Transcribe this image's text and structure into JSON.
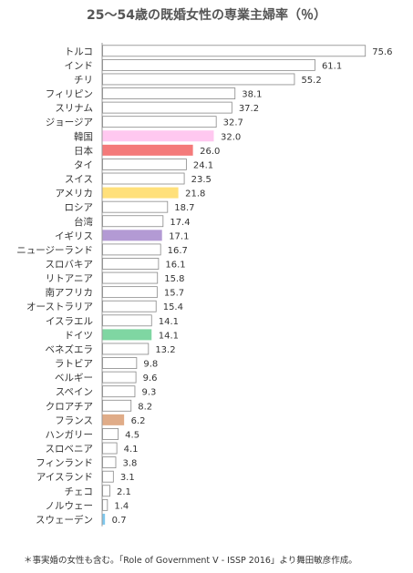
{
  "chart_data": {
    "type": "bar",
    "orientation": "horizontal",
    "title": "25～54歳の既婚女性の専業主婦率（％）",
    "footnote": "＊事実婚の女性も含む。「Role of Government V - ISSP 2016」より舞田敏彦作成。",
    "xlim": [
      0,
      80
    ],
    "grid": false,
    "categories": [
      "トルコ",
      "インド",
      "チリ",
      "フィリピン",
      "スリナム",
      "ジョージア",
      "韓国",
      "日本",
      "タイ",
      "スイス",
      "アメリカ",
      "ロシア",
      "台湾",
      "イギリス",
      "ニュージーランド",
      "スロバキア",
      "リトアニア",
      "南アフリカ",
      "オーストラリア",
      "イスラエル",
      "ドイツ",
      "ベネズエラ",
      "ラトビア",
      "ベルギー",
      "スペイン",
      "クロアチア",
      "フランス",
      "ハンガリー",
      "スロベニア",
      "フィンランド",
      "アイスランド",
      "チェコ",
      "ノルウェー",
      "スウェーデン"
    ],
    "values": [
      75.6,
      61.1,
      55.2,
      38.1,
      37.2,
      32.7,
      32.0,
      26.0,
      24.1,
      23.5,
      21.8,
      18.7,
      17.4,
      17.1,
      16.7,
      16.1,
      15.8,
      15.7,
      15.4,
      14.1,
      14.1,
      13.2,
      9.8,
      9.6,
      9.3,
      8.2,
      6.2,
      4.5,
      4.1,
      3.8,
      3.1,
      2.1,
      1.4,
      0.7
    ],
    "value_labels": [
      "75.6",
      "61.1",
      "55.2",
      "38.1",
      "37.2",
      "32.7",
      "32.0",
      "26.0",
      "24.1",
      "23.5",
      "21.8",
      "18.7",
      "17.4",
      "17.1",
      "16.7",
      "16.1",
      "15.8",
      "15.7",
      "15.4",
      "14.1",
      "14.1",
      "13.2",
      "9.8",
      "9.6",
      "9.3",
      "8.2",
      "6.2",
      "4.5",
      "4.1",
      "3.8",
      "3.1",
      "2.1",
      "1.4",
      "0.7"
    ],
    "bar_color_default": "#ffffff",
    "bar_border_color": "#888888",
    "highlight_colors": {
      "韓国": "#ffc8f0",
      "日本": "#f47a7a",
      "アメリカ": "#ffe07a",
      "イギリス": "#b39ad4",
      "ドイツ": "#7fd6a2",
      "フランス": "#e0ac88",
      "スウェーデン": "#7ec8ee"
    }
  }
}
